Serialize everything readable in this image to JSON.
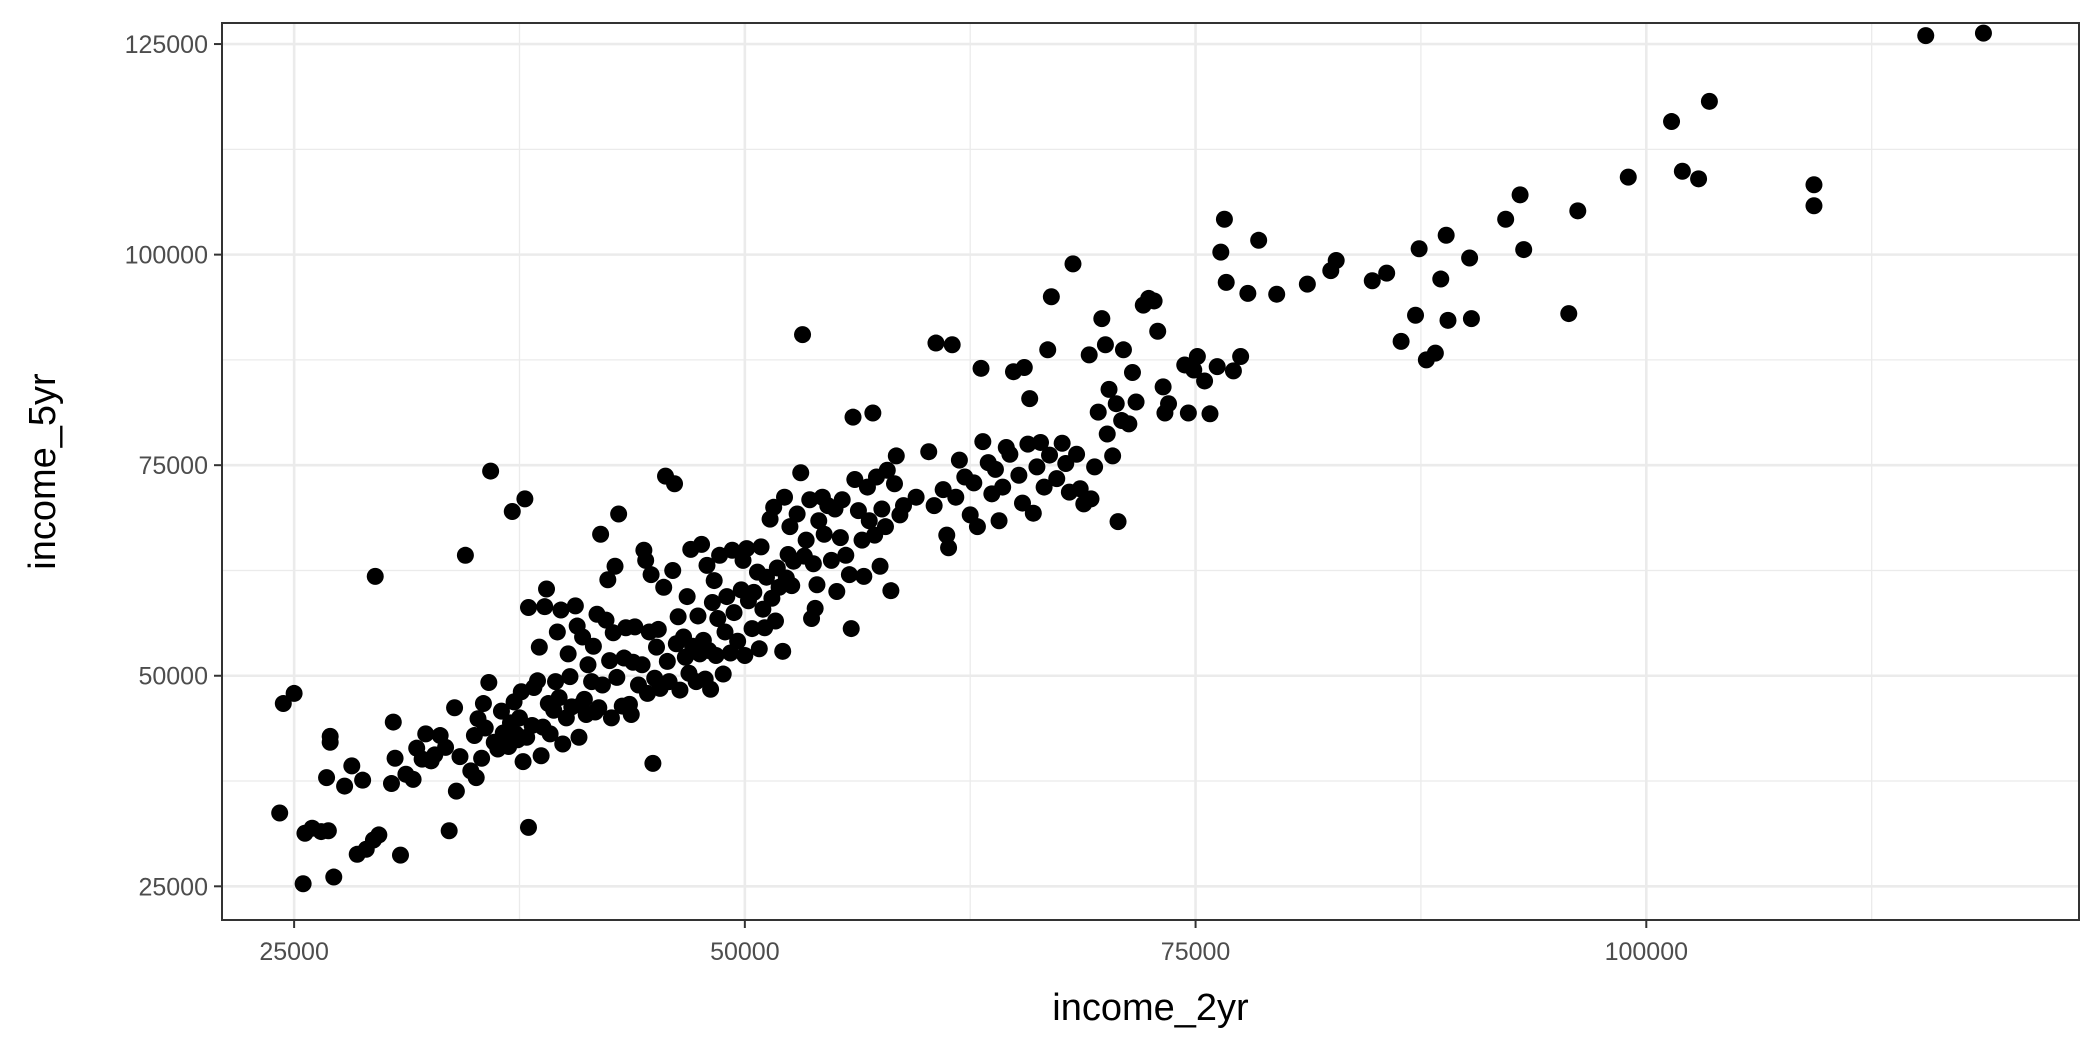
{
  "chart_data": {
    "type": "scatter",
    "title": "",
    "xlabel": "income_2yr",
    "ylabel": "income_5yr",
    "xlim": [
      21000,
      124000
    ],
    "ylim": [
      21000,
      127500
    ],
    "x_ticks": [
      25000,
      50000,
      75000,
      100000
    ],
    "y_ticks": [
      25000,
      50000,
      75000,
      100000,
      125000
    ],
    "x_minor": [
      37500,
      62500,
      87500,
      112500
    ],
    "y_minor": [
      37500,
      62500,
      87500,
      112500
    ],
    "grid": true,
    "legend": "none",
    "point_color": "#000000",
    "points": [
      [
        24200,
        33700
      ],
      [
        24400,
        46700
      ],
      [
        25000,
        47900
      ],
      [
        25500,
        25300
      ],
      [
        25600,
        31300
      ],
      [
        26000,
        31900
      ],
      [
        26500,
        31500
      ],
      [
        26800,
        37900
      ],
      [
        26900,
        31600
      ],
      [
        27000,
        42100
      ],
      [
        27000,
        42800
      ],
      [
        27200,
        26100
      ],
      [
        27800,
        36900
      ],
      [
        28200,
        39300
      ],
      [
        28500,
        28800
      ],
      [
        28800,
        37600
      ],
      [
        29000,
        29400
      ],
      [
        29400,
        30500
      ],
      [
        29500,
        61800
      ],
      [
        29700,
        31100
      ],
      [
        30400,
        37200
      ],
      [
        30500,
        44500
      ],
      [
        30600,
        40200
      ],
      [
        30900,
        28700
      ],
      [
        31200,
        38300
      ],
      [
        31600,
        37700
      ],
      [
        31800,
        41400
      ],
      [
        32100,
        40100
      ],
      [
        32300,
        43100
      ],
      [
        32600,
        39900
      ],
      [
        32800,
        40600
      ],
      [
        33100,
        42900
      ],
      [
        33400,
        41500
      ],
      [
        33600,
        31600
      ],
      [
        33900,
        46200
      ],
      [
        34000,
        36300
      ],
      [
        34200,
        40400
      ],
      [
        34500,
        64300
      ],
      [
        34800,
        38700
      ],
      [
        35000,
        42900
      ],
      [
        35100,
        37900
      ],
      [
        35200,
        44900
      ],
      [
        35400,
        40200
      ],
      [
        35500,
        46700
      ],
      [
        35600,
        43800
      ],
      [
        35800,
        49200
      ],
      [
        35900,
        74300
      ],
      [
        36100,
        42100
      ],
      [
        36300,
        41300
      ],
      [
        36500,
        45800
      ],
      [
        36600,
        43200
      ],
      [
        36800,
        42700
      ],
      [
        36900,
        41600
      ],
      [
        37000,
        44400
      ],
      [
        37100,
        69500
      ],
      [
        37200,
        46900
      ],
      [
        37300,
        43100
      ],
      [
        37400,
        42400
      ],
      [
        37500,
        45000
      ],
      [
        37600,
        48100
      ],
      [
        37700,
        39800
      ],
      [
        37800,
        71000
      ],
      [
        37900,
        42700
      ],
      [
        38000,
        58100
      ],
      [
        38000,
        32000
      ],
      [
        38200,
        44100
      ],
      [
        38300,
        48600
      ],
      [
        38500,
        49400
      ],
      [
        38600,
        53400
      ],
      [
        38700,
        40500
      ],
      [
        38800,
        43900
      ],
      [
        38900,
        58200
      ],
      [
        39000,
        60300
      ],
      [
        39100,
        46700
      ],
      [
        39200,
        43100
      ],
      [
        39400,
        45900
      ],
      [
        39500,
        49300
      ],
      [
        39600,
        55200
      ],
      [
        39700,
        47400
      ],
      [
        39800,
        57800
      ],
      [
        39900,
        41900
      ],
      [
        40100,
        45000
      ],
      [
        40200,
        52600
      ],
      [
        40300,
        49900
      ],
      [
        40400,
        46300
      ],
      [
        40600,
        58300
      ],
      [
        40700,
        55900
      ],
      [
        40800,
        42700
      ],
      [
        40900,
        46500
      ],
      [
        41000,
        54600
      ],
      [
        41100,
        47200
      ],
      [
        41200,
        45400
      ],
      [
        41300,
        51300
      ],
      [
        41500,
        49300
      ],
      [
        41600,
        53500
      ],
      [
        41700,
        45700
      ],
      [
        41800,
        57300
      ],
      [
        41900,
        46200
      ],
      [
        42000,
        66800
      ],
      [
        42100,
        48900
      ],
      [
        42300,
        56600
      ],
      [
        42400,
        61400
      ],
      [
        42500,
        51800
      ],
      [
        42600,
        45000
      ],
      [
        42700,
        55100
      ],
      [
        42800,
        63000
      ],
      [
        42900,
        49800
      ],
      [
        43000,
        69200
      ],
      [
        43200,
        46400
      ],
      [
        43300,
        52100
      ],
      [
        43400,
        55700
      ],
      [
        43600,
        46600
      ],
      [
        43700,
        45400
      ],
      [
        43800,
        51600
      ],
      [
        43900,
        55800
      ],
      [
        44100,
        48900
      ],
      [
        44300,
        51300
      ],
      [
        44400,
        64900
      ],
      [
        44500,
        63700
      ],
      [
        44600,
        47900
      ],
      [
        44700,
        55200
      ],
      [
        44800,
        62000
      ],
      [
        44900,
        39600
      ],
      [
        45000,
        49700
      ],
      [
        45100,
        53400
      ],
      [
        45200,
        55500
      ],
      [
        45300,
        48500
      ],
      [
        45500,
        60500
      ],
      [
        45600,
        73700
      ],
      [
        45700,
        51700
      ],
      [
        45800,
        49300
      ],
      [
        46000,
        62500
      ],
      [
        46100,
        72800
      ],
      [
        46200,
        53800
      ],
      [
        46300,
        57000
      ],
      [
        46400,
        48300
      ],
      [
        46600,
        54600
      ],
      [
        46700,
        52200
      ],
      [
        46800,
        59400
      ],
      [
        46900,
        50300
      ],
      [
        47000,
        65000
      ],
      [
        47100,
        53500
      ],
      [
        47300,
        49300
      ],
      [
        47400,
        57100
      ],
      [
        47500,
        52600
      ],
      [
        47600,
        65600
      ],
      [
        47700,
        54200
      ],
      [
        47800,
        49600
      ],
      [
        47900,
        63100
      ],
      [
        48000,
        53000
      ],
      [
        48100,
        48400
      ],
      [
        48200,
        58700
      ],
      [
        48300,
        61300
      ],
      [
        48400,
        52400
      ],
      [
        48500,
        56800
      ],
      [
        48600,
        64300
      ],
      [
        48800,
        50200
      ],
      [
        48900,
        55200
      ],
      [
        49000,
        59400
      ],
      [
        49200,
        52700
      ],
      [
        49300,
        64900
      ],
      [
        49400,
        57500
      ],
      [
        49600,
        54100
      ],
      [
        49800,
        60200
      ],
      [
        49900,
        63700
      ],
      [
        50000,
        52400
      ],
      [
        50100,
        65100
      ],
      [
        50200,
        58900
      ],
      [
        50400,
        55600
      ],
      [
        50500,
        59900
      ],
      [
        50700,
        62300
      ],
      [
        50800,
        53200
      ],
      [
        50900,
        65300
      ],
      [
        51000,
        57900
      ],
      [
        51100,
        55700
      ],
      [
        51200,
        61700
      ],
      [
        51400,
        68600
      ],
      [
        51500,
        59200
      ],
      [
        51600,
        70000
      ],
      [
        51700,
        56500
      ],
      [
        51800,
        62800
      ],
      [
        51900,
        60500
      ],
      [
        52100,
        52900
      ],
      [
        52200,
        71200
      ],
      [
        52300,
        61600
      ],
      [
        52400,
        64400
      ],
      [
        52500,
        67700
      ],
      [
        52600,
        60700
      ],
      [
        52700,
        63600
      ],
      [
        52900,
        69200
      ],
      [
        53100,
        74100
      ],
      [
        53200,
        90500
      ],
      [
        53300,
        64200
      ],
      [
        53400,
        66100
      ],
      [
        53600,
        70900
      ],
      [
        53700,
        56800
      ],
      [
        53800,
        63300
      ],
      [
        53900,
        58000
      ],
      [
        54000,
        60800
      ],
      [
        54100,
        68400
      ],
      [
        54300,
        71200
      ],
      [
        54400,
        66800
      ],
      [
        54600,
        70200
      ],
      [
        54800,
        63700
      ],
      [
        55000,
        69800
      ],
      [
        55100,
        60000
      ],
      [
        55300,
        66400
      ],
      [
        55400,
        70900
      ],
      [
        55600,
        64300
      ],
      [
        55800,
        62000
      ],
      [
        55900,
        55600
      ],
      [
        56000,
        80700
      ],
      [
        56100,
        73300
      ],
      [
        56300,
        69600
      ],
      [
        56500,
        66100
      ],
      [
        56600,
        61800
      ],
      [
        56800,
        72400
      ],
      [
        56900,
        68400
      ],
      [
        57100,
        81200
      ],
      [
        57200,
        66700
      ],
      [
        57300,
        73600
      ],
      [
        57500,
        63000
      ],
      [
        57600,
        69800
      ],
      [
        57800,
        67700
      ],
      [
        57900,
        74400
      ],
      [
        58100,
        60100
      ],
      [
        58300,
        72800
      ],
      [
        58400,
        76100
      ],
      [
        58600,
        69100
      ],
      [
        58800,
        70200
      ],
      [
        59500,
        71200
      ],
      [
        60200,
        76600
      ],
      [
        60500,
        70200
      ],
      [
        60600,
        89500
      ],
      [
        61000,
        72100
      ],
      [
        61200,
        66700
      ],
      [
        61300,
        65200
      ],
      [
        61500,
        89300
      ],
      [
        61700,
        71200
      ],
      [
        61900,
        75600
      ],
      [
        62200,
        73600
      ],
      [
        62500,
        69100
      ],
      [
        62700,
        72900
      ],
      [
        62900,
        67700
      ],
      [
        63100,
        86500
      ],
      [
        63200,
        77800
      ],
      [
        63500,
        75300
      ],
      [
        63700,
        71600
      ],
      [
        63900,
        74500
      ],
      [
        64100,
        68400
      ],
      [
        64300,
        72400
      ],
      [
        64500,
        77100
      ],
      [
        64700,
        76300
      ],
      [
        64900,
        86100
      ],
      [
        65200,
        73800
      ],
      [
        65400,
        70500
      ],
      [
        65500,
        86600
      ],
      [
        65700,
        77500
      ],
      [
        65800,
        82900
      ],
      [
        66000,
        69300
      ],
      [
        66200,
        74800
      ],
      [
        66400,
        77700
      ],
      [
        66600,
        72400
      ],
      [
        66800,
        88700
      ],
      [
        66900,
        76200
      ],
      [
        67000,
        95000
      ],
      [
        67300,
        73400
      ],
      [
        67600,
        77600
      ],
      [
        67800,
        75200
      ],
      [
        68000,
        71800
      ],
      [
        68200,
        98900
      ],
      [
        68400,
        76300
      ],
      [
        68600,
        72200
      ],
      [
        68800,
        70400
      ],
      [
        69100,
        88100
      ],
      [
        69200,
        71000
      ],
      [
        69400,
        74800
      ],
      [
        69600,
        81300
      ],
      [
        69800,
        92400
      ],
      [
        70000,
        89300
      ],
      [
        70100,
        78700
      ],
      [
        70200,
        84000
      ],
      [
        70400,
        76100
      ],
      [
        70600,
        82300
      ],
      [
        70700,
        68300
      ],
      [
        70900,
        80300
      ],
      [
        71000,
        88700
      ],
      [
        71300,
        79900
      ],
      [
        71500,
        86000
      ],
      [
        71700,
        82500
      ],
      [
        72100,
        94000
      ],
      [
        72400,
        94800
      ],
      [
        72700,
        94500
      ],
      [
        72900,
        90900
      ],
      [
        73200,
        84300
      ],
      [
        73300,
        81200
      ],
      [
        73500,
        82300
      ],
      [
        74400,
        86900
      ],
      [
        74600,
        81200
      ],
      [
        74900,
        86300
      ],
      [
        75100,
        87900
      ],
      [
        75500,
        85000
      ],
      [
        75800,
        81100
      ],
      [
        76200,
        86700
      ],
      [
        76400,
        100300
      ],
      [
        76600,
        104200
      ],
      [
        76700,
        96700
      ],
      [
        77100,
        86200
      ],
      [
        77500,
        87900
      ],
      [
        77900,
        95400
      ],
      [
        78500,
        101700
      ],
      [
        79500,
        95300
      ],
      [
        81200,
        96500
      ],
      [
        82500,
        98100
      ],
      [
        82800,
        99300
      ],
      [
        84800,
        96900
      ],
      [
        85600,
        97800
      ],
      [
        86400,
        89700
      ],
      [
        87200,
        92800
      ],
      [
        87400,
        100700
      ],
      [
        87800,
        87500
      ],
      [
        88300,
        88300
      ],
      [
        88600,
        97100
      ],
      [
        88900,
        102300
      ],
      [
        89000,
        92200
      ],
      [
        90200,
        99600
      ],
      [
        90300,
        92400
      ],
      [
        92200,
        104200
      ],
      [
        93000,
        107100
      ],
      [
        93200,
        100600
      ],
      [
        95700,
        93000
      ],
      [
        96200,
        105200
      ],
      [
        99000,
        109200
      ],
      [
        101400,
        115800
      ],
      [
        102000,
        109900
      ],
      [
        102900,
        109000
      ],
      [
        103500,
        118200
      ],
      [
        109300,
        108300
      ],
      [
        109300,
        105800
      ],
      [
        115500,
        126000
      ],
      [
        118700,
        126300
      ]
    ]
  }
}
